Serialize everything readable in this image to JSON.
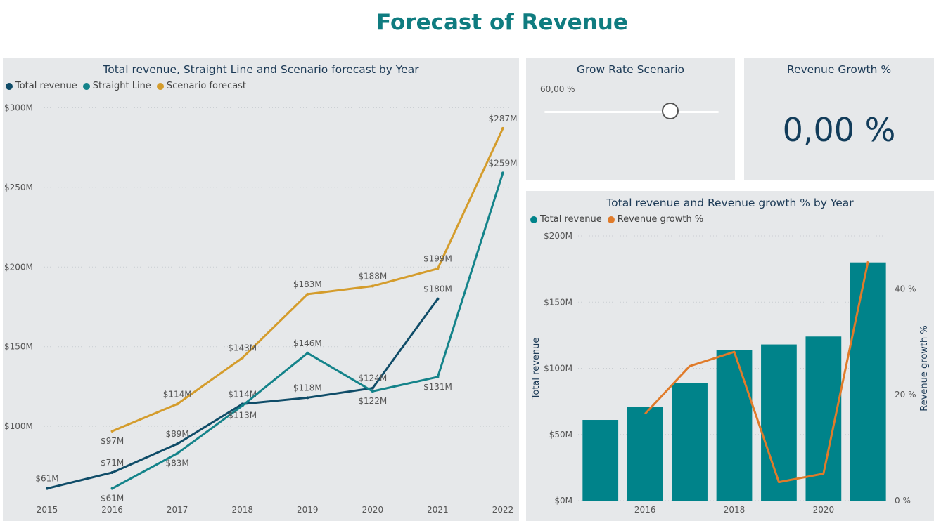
{
  "page": {
    "title": "Forecast of Revenue"
  },
  "line_panel": {
    "title": "Total revenue, Straight Line and Scenario forecast by Year"
  },
  "slider_panel": {
    "title": "Grow Rate Scenario",
    "value_label": "60,00 %",
    "value": 0.6
  },
  "kpi_panel": {
    "title": "Revenue Growth %",
    "value": "0,00 %"
  },
  "combo_panel": {
    "title": "Total revenue and Revenue growth % by Year"
  },
  "colors": {
    "total_revenue": "#0f4c68",
    "straight_line": "#14838a",
    "scenario": "#d49c2c",
    "bar": "#00838a",
    "growth": "#e07b2a"
  },
  "chart_data": [
    {
      "type": "line",
      "title": "Total revenue, Straight Line and Scenario forecast by Year",
      "x": [
        2015,
        2016,
        2017,
        2018,
        2019,
        2020,
        2021,
        2022
      ],
      "x_tick_labels": [
        "2015",
        "2016",
        "2017",
        "2018",
        "2019",
        "2020",
        "2021",
        "2022"
      ],
      "ylim": [
        56,
        305
      ],
      "y_ticks": [
        100,
        150,
        200,
        250,
        300
      ],
      "y_tick_labels": [
        "$100M",
        "$150M",
        "$200M",
        "$250M",
        "$300M"
      ],
      "grid": true,
      "legend": "top-left",
      "series": [
        {
          "name": "Total revenue",
          "values": [
            61,
            71,
            89,
            114,
            118,
            124,
            180,
            null
          ],
          "labels": [
            "$61M",
            "$71M",
            "$89M",
            "$114M",
            "$118M",
            "$124M",
            "$180M",
            ""
          ]
        },
        {
          "name": "Straight Line",
          "values": [
            null,
            61,
            83,
            113,
            146,
            122,
            131,
            259
          ],
          "labels": [
            "",
            "$61M",
            "$83M",
            "$113M",
            "$146M",
            "$122M",
            "$131M",
            "$259M"
          ]
        },
        {
          "name": "Scenario forecast",
          "values": [
            null,
            97,
            114,
            143,
            183,
            188,
            199,
            287
          ],
          "labels": [
            "",
            "$97M",
            "$114M",
            "$143M",
            "$183M",
            "$188M",
            "$199M",
            "$287M"
          ]
        }
      ]
    },
    {
      "type": "bar",
      "title": "Total revenue and Revenue growth % by Year",
      "categories": [
        2015,
        2016,
        2017,
        2018,
        2019,
        2020,
        2021
      ],
      "x_tick_labels": [
        "2016",
        "2018",
        "2020"
      ],
      "x_tick_values": [
        2016,
        2018,
        2020
      ],
      "ylabel": "Total revenue",
      "y2label": "Revenue growth %",
      "ylim": [
        0,
        200
      ],
      "y_ticks": [
        0,
        50,
        100,
        150,
        200
      ],
      "y_tick_labels": [
        "$0M",
        "$50M",
        "$100M",
        "$150M",
        "$200M"
      ],
      "y2lim": [
        0,
        50
      ],
      "y2_ticks": [
        0,
        20,
        40
      ],
      "y2_tick_labels": [
        "0 %",
        "20 %",
        "40 %"
      ],
      "legend": "top-left",
      "series": [
        {
          "name": "Total revenue",
          "kind": "bar",
          "values": [
            61,
            71,
            89,
            114,
            118,
            124,
            180
          ]
        },
        {
          "name": "Revenue growth %",
          "kind": "line",
          "values": [
            null,
            16.4,
            25.4,
            28.1,
            3.5,
            5.1,
            45.2
          ]
        }
      ]
    }
  ]
}
